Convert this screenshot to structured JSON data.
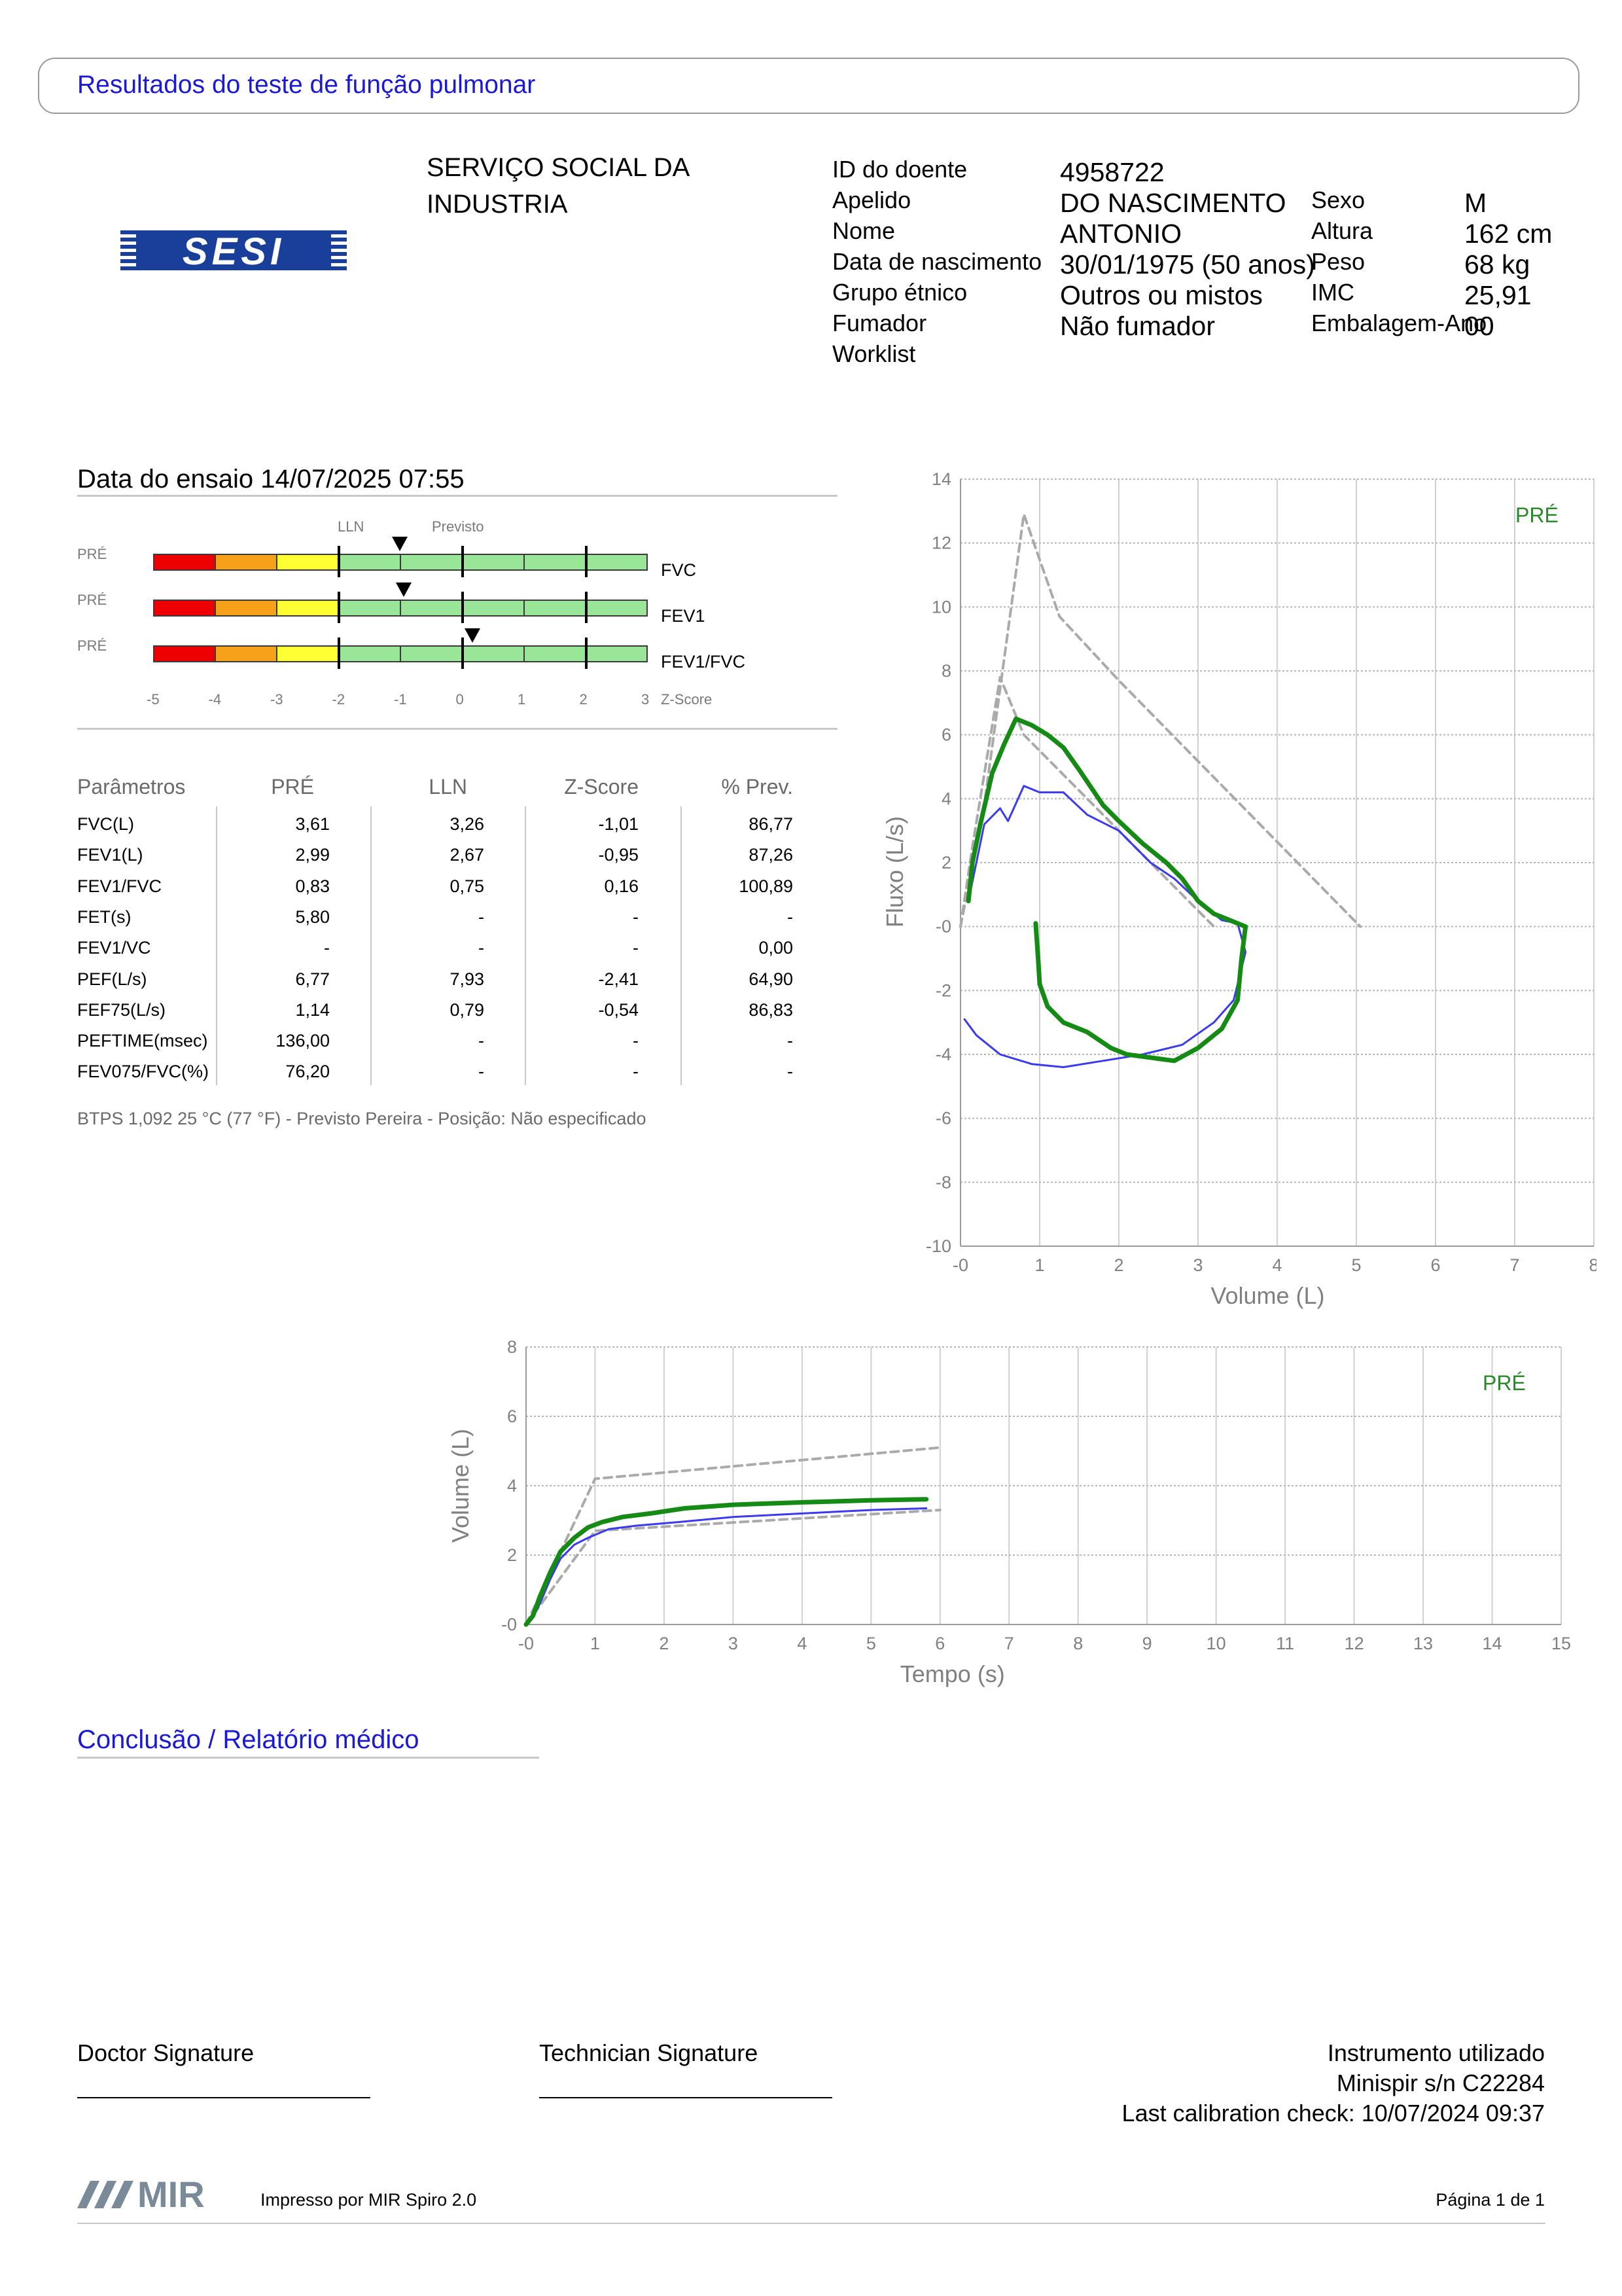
{
  "header": {
    "title": "Resultados do teste de função pulmonar"
  },
  "organization": {
    "line1": "SERVIÇO SOCIAL DA",
    "line2": "INDUSTRIA",
    "logo_text": "SESI",
    "logo_color": "#1a3f9a"
  },
  "patient": {
    "col1": [
      {
        "label": "ID do doente",
        "value": "4958722"
      },
      {
        "label": "Apelido",
        "value": "DO NASCIMENTO"
      },
      {
        "label": "Nome",
        "value": "ANTONIO"
      },
      {
        "label": "Data de nascimento",
        "value": "30/01/1975 (50 anos)"
      },
      {
        "label": "Grupo étnico",
        "value": "Outros ou mistos"
      },
      {
        "label": "Fumador",
        "value": "Não fumador"
      },
      {
        "label": "Worklist",
        "value": ""
      }
    ],
    "col2": [
      {
        "label": "Sexo",
        "value": "M"
      },
      {
        "label": "Altura",
        "value": "162 cm"
      },
      {
        "label": "Peso",
        "value": "68 kg"
      },
      {
        "label": "IMC",
        "value": "25,91"
      },
      {
        "label": "Embalagem-Ano",
        "value": "00"
      }
    ]
  },
  "test": {
    "date_label": "Data do ensaio 14/07/2025 07:55"
  },
  "zscore": {
    "lln_label": "LLN",
    "pred_label": "Previsto",
    "axis_ticks": [
      "-5",
      "-4",
      "-3",
      "-2",
      "-1",
      "0",
      "1",
      "2",
      "3"
    ],
    "axis_title": "Z-Score",
    "colors": {
      "red": "#ee0000",
      "orange": "#f7a11a",
      "yellow": "#ffff33",
      "green": "#99e699"
    },
    "rows": [
      {
        "phase": "PRÉ",
        "name": "FVC",
        "z": -1.01
      },
      {
        "phase": "PRÉ",
        "name": "FEV1",
        "z": -0.95
      },
      {
        "phase": "PRÉ",
        "name": "FEV1/FVC",
        "z": 0.16
      }
    ]
  },
  "params": {
    "headers": [
      "Parâmetros",
      "PRÉ",
      "LLN",
      "Z-Score",
      "% Prev."
    ],
    "rows": [
      [
        "FVC(L)",
        "3,61",
        "3,26",
        "-1,01",
        "86,77"
      ],
      [
        "FEV1(L)",
        "2,99",
        "2,67",
        "-0,95",
        "87,26"
      ],
      [
        "FEV1/FVC",
        "0,83",
        "0,75",
        "0,16",
        "100,89"
      ],
      [
        "FET(s)",
        "5,80",
        "-",
        "-",
        "-"
      ],
      [
        "FEV1/VC",
        "-",
        "-",
        "-",
        "0,00"
      ],
      [
        "PEF(L/s)",
        "6,77",
        "7,93",
        "-2,41",
        "64,90"
      ],
      [
        "FEF75(L/s)",
        "1,14",
        "0,79",
        "-0,54",
        "86,83"
      ],
      [
        "PEFTIME(msec)",
        "136,00",
        "-",
        "-",
        "-"
      ],
      [
        "FEV075/FVC(%)",
        "76,20",
        "-",
        "-",
        "-"
      ]
    ],
    "footnote": "BTPS 1,092 25 °C (77 °F) - Previsto Pereira - Posição: Não especificado"
  },
  "chart_data": [
    {
      "type": "line",
      "xlabel": "Volume (L)",
      "ylabel": "Fluxo (L/s)",
      "xlim": [
        0,
        8
      ],
      "ylim": [
        -10,
        14
      ],
      "x_ticks": [
        "-0",
        "1",
        "2",
        "3",
        "4",
        "5",
        "6",
        "7",
        "8"
      ],
      "y_ticks": [
        "14",
        "12",
        "10",
        "8",
        "6",
        "4",
        "2",
        "-0",
        "-2",
        "-4",
        "-6",
        "-8",
        "-10"
      ],
      "grid": true,
      "legend": "PRÉ",
      "legend_color": "#2a8a2a",
      "series": [
        {
          "color": "#aaaaaa",
          "style": "dashed",
          "points": [
            [
              0.0,
              0.0
            ],
            [
              0.3,
              3.8
            ],
            [
              0.8,
              12.9
            ],
            [
              1.25,
              9.7
            ],
            [
              2.0,
              7.7
            ],
            [
              5.05,
              0.0
            ]
          ]
        },
        {
          "color": "#aaaaaa",
          "style": "dashed",
          "points": [
            [
              0.0,
              0.0
            ],
            [
              0.15,
              2.5
            ],
            [
              0.5,
              7.8
            ],
            [
              0.8,
              6.0
            ],
            [
              1.2,
              5.0
            ],
            [
              3.2,
              0.0
            ]
          ]
        },
        {
          "color": "#3a3aee",
          "style": "solid",
          "points": [
            [
              0.1,
              0.8
            ],
            [
              0.3,
              3.2
            ],
            [
              0.5,
              3.7
            ],
            [
              0.6,
              3.3
            ],
            [
              0.8,
              4.4
            ],
            [
              1.0,
              4.2
            ],
            [
              1.3,
              4.2
            ],
            [
              1.6,
              3.5
            ],
            [
              2.0,
              3.0
            ],
            [
              2.4,
              2.0
            ],
            [
              2.7,
              1.5
            ],
            [
              3.0,
              0.8
            ],
            [
              3.3,
              0.2
            ],
            [
              3.5,
              0.1
            ],
            [
              3.6,
              -0.8
            ],
            [
              3.45,
              -2.3
            ],
            [
              3.2,
              -3.0
            ],
            [
              2.8,
              -3.7
            ],
            [
              2.3,
              -4.0
            ],
            [
              1.8,
              -4.2
            ],
            [
              1.3,
              -4.4
            ],
            [
              0.9,
              -4.3
            ],
            [
              0.5,
              -4.0
            ],
            [
              0.2,
              -3.4
            ],
            [
              0.05,
              -2.9
            ]
          ]
        },
        {
          "color": "#158a15",
          "style": "solid",
          "points": [
            [
              0.1,
              0.8
            ],
            [
              0.15,
              2.0
            ],
            [
              0.25,
              3.2
            ],
            [
              0.4,
              4.8
            ],
            [
              0.55,
              5.7
            ],
            [
              0.7,
              6.5
            ],
            [
              0.9,
              6.3
            ],
            [
              1.1,
              6.0
            ],
            [
              1.3,
              5.6
            ],
            [
              1.5,
              4.9
            ],
            [
              1.8,
              3.8
            ],
            [
              2.0,
              3.3
            ],
            [
              2.3,
              2.6
            ],
            [
              2.6,
              2.0
            ],
            [
              2.8,
              1.5
            ],
            [
              3.0,
              0.8
            ],
            [
              3.2,
              0.4
            ],
            [
              3.4,
              0.2
            ],
            [
              3.6,
              0.0
            ],
            [
              3.55,
              -1.0
            ],
            [
              3.5,
              -2.3
            ],
            [
              3.3,
              -3.2
            ],
            [
              3.0,
              -3.8
            ],
            [
              2.7,
              -4.2
            ],
            [
              2.4,
              -4.1
            ],
            [
              2.1,
              -4.0
            ],
            [
              1.9,
              -3.8
            ],
            [
              1.6,
              -3.3
            ],
            [
              1.3,
              -3.0
            ],
            [
              1.1,
              -2.5
            ],
            [
              1.0,
              -1.8
            ],
            [
              0.98,
              -1.0
            ],
            [
              0.95,
              0.1
            ]
          ]
        }
      ]
    },
    {
      "type": "line",
      "xlabel": "Tempo (s)",
      "ylabel": "Volume (L)",
      "xlim": [
        0,
        15
      ],
      "ylim": [
        0,
        8
      ],
      "x_ticks": [
        "-0",
        "1",
        "2",
        "3",
        "4",
        "5",
        "6",
        "7",
        "8",
        "9",
        "10",
        "11",
        "12",
        "13",
        "14",
        "15"
      ],
      "y_ticks": [
        "8",
        "6",
        "4",
        "2",
        "-0"
      ],
      "grid": true,
      "legend": "PRÉ",
      "legend_color": "#2a8a2a",
      "series": [
        {
          "color": "#aaaaaa",
          "style": "dashed",
          "points": [
            [
              0.0,
              0.0
            ],
            [
              1.0,
              4.2
            ],
            [
              6.0,
              5.1
            ]
          ]
        },
        {
          "color": "#aaaaaa",
          "style": "dashed",
          "points": [
            [
              0.0,
              0.0
            ],
            [
              1.0,
              2.7
            ],
            [
              6.0,
              3.3
            ]
          ]
        },
        {
          "color": "#3a3aee",
          "style": "solid",
          "points": [
            [
              0.0,
              0.0
            ],
            [
              0.1,
              0.2
            ],
            [
              0.2,
              0.6
            ],
            [
              0.35,
              1.3
            ],
            [
              0.5,
              1.9
            ],
            [
              0.7,
              2.3
            ],
            [
              0.9,
              2.5
            ],
            [
              1.2,
              2.75
            ],
            [
              1.6,
              2.85
            ],
            [
              2.2,
              2.95
            ],
            [
              3.0,
              3.1
            ],
            [
              4.0,
              3.2
            ],
            [
              5.0,
              3.3
            ],
            [
              5.8,
              3.35
            ]
          ]
        },
        {
          "color": "#158a15",
          "style": "solid",
          "points": [
            [
              0.0,
              0.0
            ],
            [
              0.1,
              0.25
            ],
            [
              0.2,
              0.8
            ],
            [
              0.35,
              1.5
            ],
            [
              0.5,
              2.1
            ],
            [
              0.7,
              2.5
            ],
            [
              0.9,
              2.8
            ],
            [
              1.1,
              2.95
            ],
            [
              1.4,
              3.1
            ],
            [
              1.8,
              3.2
            ],
            [
              2.3,
              3.35
            ],
            [
              3.0,
              3.45
            ],
            [
              4.0,
              3.52
            ],
            [
              5.0,
              3.58
            ],
            [
              5.8,
              3.61
            ]
          ]
        }
      ]
    }
  ],
  "conclusion": {
    "title": "Conclusão / Relatório médico"
  },
  "signatures": {
    "doctor": "Doctor Signature",
    "technician": "Technician Signature",
    "instrument_title": "Instrumento utilizado",
    "instrument_model": "Minispir s/n C22284",
    "calibration": "Last calibration check: 10/07/2024 09:37"
  },
  "footer": {
    "logo": "MIR",
    "printed_by": "Impresso por MIR Spiro 2.0",
    "page": "Página 1 de 1"
  }
}
